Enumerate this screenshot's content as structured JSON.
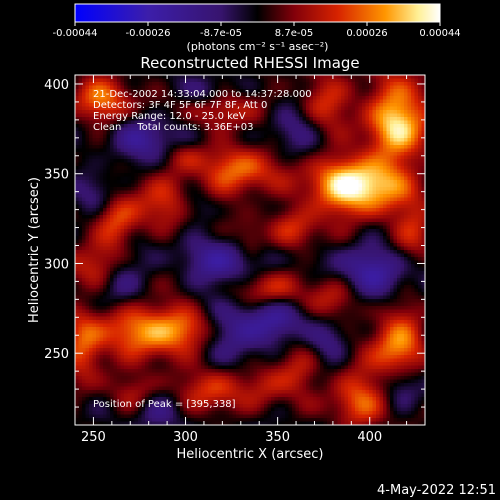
{
  "colorbar": {
    "tick_labels": [
      "-0.00044",
      "-0.00026",
      "-8.7e-05",
      "8.7e-05",
      "0.00026",
      "0.00044"
    ],
    "range": [
      -0.00044,
      0.00044
    ],
    "unit_label": "(photons cm⁻² s⁻¹ asec⁻²)",
    "colors": [
      "#0000ff",
      "#4a1aa8",
      "#000000",
      "#8b0000",
      "#e02000",
      "#ff8c00",
      "#ffffcc",
      "#ffffff"
    ]
  },
  "chart_data": {
    "type": "heatmap",
    "title": "Reconstructed RHESSI Image",
    "xlabel": "Heliocentric X (arcsec)",
    "ylabel": "Heliocentric Y (arcsec)",
    "xlim": [
      240,
      430
    ],
    "ylim": [
      210,
      405
    ],
    "xticks": [
      250,
      300,
      350,
      400
    ],
    "yticks": [
      250,
      300,
      350,
      400
    ],
    "grid": false,
    "peak": {
      "x": 395,
      "y": 338
    },
    "blobs": [
      {
        "x": 393,
        "y": 343,
        "sx": 18,
        "sy": 12,
        "v": 1.0
      },
      {
        "x": 416,
        "y": 380,
        "sx": 12,
        "sy": 16,
        "v": 0.85
      },
      {
        "x": 330,
        "y": 353,
        "sx": 14,
        "sy": 10,
        "v": 0.55
      },
      {
        "x": 255,
        "y": 392,
        "sx": 12,
        "sy": 10,
        "v": 0.55
      },
      {
        "x": 280,
        "y": 262,
        "sx": 16,
        "sy": 12,
        "v": 0.7
      },
      {
        "x": 415,
        "y": 255,
        "sx": 10,
        "sy": 14,
        "v": 0.7
      },
      {
        "x": 345,
        "y": 285,
        "sx": 12,
        "sy": 8,
        "v": 0.55
      },
      {
        "x": 245,
        "y": 255,
        "sx": 8,
        "sy": 14,
        "v": 0.55
      },
      {
        "x": 288,
        "y": 335,
        "sx": 20,
        "sy": 10,
        "v": 0.45
      },
      {
        "x": 375,
        "y": 390,
        "sx": 12,
        "sy": 10,
        "v": 0.45
      },
      {
        "x": 315,
        "y": 230,
        "sx": 12,
        "sy": 10,
        "v": 0.45
      },
      {
        "x": 395,
        "y": 225,
        "sx": 12,
        "sy": 12,
        "v": 0.5
      },
      {
        "x": 250,
        "y": 300,
        "sx": 10,
        "sy": 10,
        "v": 0.4
      },
      {
        "x": 360,
        "y": 320,
        "sx": 10,
        "sy": 8,
        "v": 0.35
      },
      {
        "x": 322,
        "y": 387,
        "sx": 16,
        "sy": 8,
        "v": 0.35
      },
      {
        "x": 262,
        "y": 320,
        "sx": 8,
        "sy": 10,
        "v": 0.35
      },
      {
        "x": 378,
        "y": 280,
        "sx": 10,
        "sy": 10,
        "v": 0.4
      },
      {
        "x": 275,
        "y": 225,
        "sx": 10,
        "sy": 8,
        "v": 0.35
      },
      {
        "x": 360,
        "y": 240,
        "sx": 10,
        "sy": 10,
        "v": 0.35
      },
      {
        "x": 305,
        "y": 265,
        "sx": 10,
        "sy": 8,
        "v": 0.3
      },
      {
        "x": 335,
        "y": 312,
        "sx": 6,
        "sy": 8,
        "v": 0.3
      },
      {
        "x": 300,
        "y": 360,
        "sx": 8,
        "sy": 6,
        "v": 0.3
      },
      {
        "x": 343,
        "y": 233,
        "sx": 8,
        "sy": 8,
        "v": 0.3
      },
      {
        "x": 425,
        "y": 320,
        "sx": 8,
        "sy": 12,
        "v": 0.4
      },
      {
        "x": 320,
        "y": 300,
        "sx": 14,
        "sy": 10,
        "v": -0.45
      },
      {
        "x": 350,
        "y": 270,
        "sx": 12,
        "sy": 12,
        "v": -0.45
      },
      {
        "x": 325,
        "y": 260,
        "sx": 10,
        "sy": 12,
        "v": -0.4
      },
      {
        "x": 400,
        "y": 295,
        "sx": 14,
        "sy": 12,
        "v": -0.45
      },
      {
        "x": 278,
        "y": 368,
        "sx": 12,
        "sy": 10,
        "v": -0.4
      },
      {
        "x": 265,
        "y": 290,
        "sx": 8,
        "sy": 10,
        "v": -0.35
      },
      {
        "x": 283,
        "y": 220,
        "sx": 10,
        "sy": 8,
        "v": -0.35
      },
      {
        "x": 358,
        "y": 378,
        "sx": 10,
        "sy": 10,
        "v": -0.35
      },
      {
        "x": 305,
        "y": 332,
        "sx": 8,
        "sy": 8,
        "v": -0.3
      },
      {
        "x": 252,
        "y": 338,
        "sx": 8,
        "sy": 8,
        "v": -0.3
      },
      {
        "x": 418,
        "y": 232,
        "sx": 8,
        "sy": 10,
        "v": -0.35
      },
      {
        "x": 312,
        "y": 395,
        "sx": 8,
        "sy": 6,
        "v": -0.3
      },
      {
        "x": 378,
        "y": 255,
        "sx": 8,
        "sy": 8,
        "v": -0.3
      }
    ],
    "annotations": [
      "21-Dec-2002 14:33:04.000 to 14:37:28.000",
      "Detectors: 3F 4F 5F 6F 7F 8F, Att 0",
      "Energy Range: 12.0 - 25.0 keV",
      "Clean     Total counts: 3.36E+03"
    ],
    "peak_text": "Position of Peak = [395,338]"
  },
  "footer": {
    "timestamp": "4-May-2022 12:51"
  }
}
